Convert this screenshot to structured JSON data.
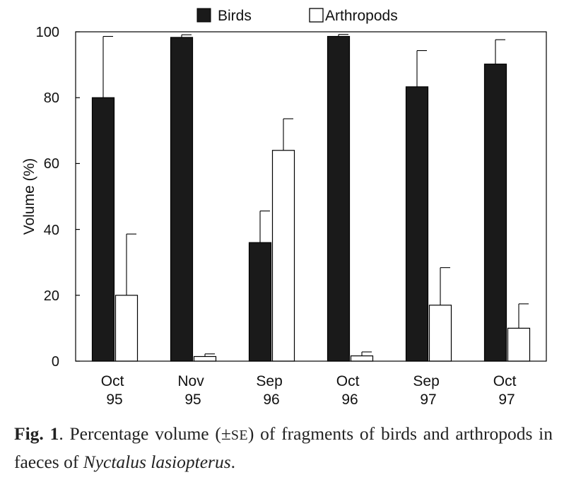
{
  "chart_data": {
    "type": "bar",
    "categories": [
      [
        "Oct",
        "95"
      ],
      [
        "Nov",
        "95"
      ],
      [
        "Sep",
        "96"
      ],
      [
        "Oct",
        "96"
      ],
      [
        "Sep",
        "97"
      ],
      [
        "Oct",
        "97"
      ]
    ],
    "series": [
      {
        "name": "Birds",
        "fill": "#1a1a1a",
        "values": [
          80,
          98.3,
          36,
          98.6,
          83.3,
          90.2
        ],
        "se": [
          18.6,
          0.8,
          9.6,
          0.6,
          11,
          7.4
        ]
      },
      {
        "name": "Arthropods",
        "fill": "#ffffff",
        "values": [
          20,
          1.4,
          64,
          1.6,
          17,
          10
        ],
        "se": [
          18.6,
          0.8,
          9.6,
          1.2,
          11.4,
          7.4
        ]
      }
    ],
    "ylabel": "Volume (%)",
    "ylim": [
      0,
      100
    ],
    "yticks": [
      0,
      20,
      40,
      60,
      80,
      100
    ],
    "legend_position": "top-center",
    "grid": false
  },
  "caption": {
    "label": "Fig. 1",
    "text_before": ". Percentage volume (",
    "pm": "±",
    "se": "SE",
    "text_middle": ") of fragments of birds and arthropods in faeces of ",
    "species": "Nyctalus lasiopterus",
    "text_end": "."
  }
}
